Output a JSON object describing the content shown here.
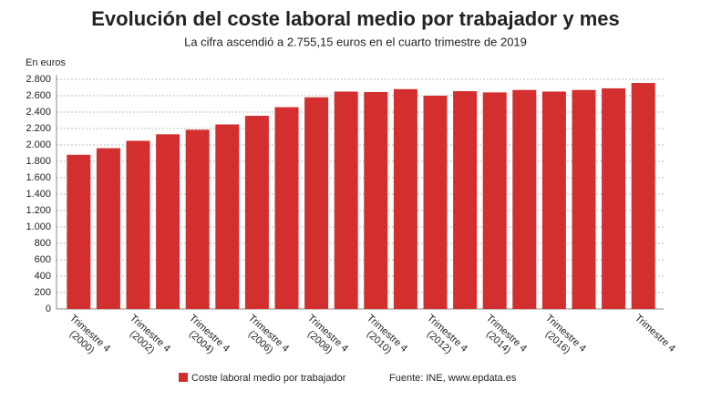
{
  "chart_data": {
    "type": "bar",
    "title": "Evolución del coste laboral medio por trabajador y mes",
    "subtitle": "La cifra ascendió a 2.755,15 euros en el cuarto trimestre de 2019",
    "y_axis_label": "En euros",
    "source": "Fuente: INE, www.epdata.es",
    "categories": [
      "Trimestre 4\n(2000)",
      null,
      "Trimestre 4\n(2002)",
      null,
      "Trimestre 4\n(2004)",
      null,
      "Trimestre 4\n(2006)",
      null,
      "Trimestre 4\n(2008)",
      null,
      "Trimestre 4\n(2010)",
      null,
      "Trimestre 4\n(2012)",
      null,
      "Trimestre 4\n(2014)",
      null,
      "Trimestre 4\n(2016)",
      null,
      null,
      "Trimestre 4"
    ],
    "series": [
      {
        "name": "Coste laboral medio por trabajador",
        "color": "#d32f2f",
        "values": [
          1880,
          1960,
          2050,
          2130,
          2185,
          2250,
          2355,
          2460,
          2580,
          2650,
          2645,
          2680,
          2600,
          2655,
          2640,
          2670,
          2650,
          2670,
          2690,
          2755.15
        ]
      }
    ],
    "ylim": [
      0,
      2800
    ],
    "yticks": [
      0,
      200,
      400,
      600,
      800,
      {
        "value": 1000,
        "label": "1.000"
      },
      {
        "value": 1200,
        "label": "1.200"
      },
      {
        "value": 1400,
        "label": "1.400"
      },
      {
        "value": 1600,
        "label": "1.600"
      },
      {
        "value": 1800,
        "label": "1.800"
      },
      {
        "value": 2000,
        "label": "2.000"
      },
      {
        "value": 2200,
        "label": "2.200"
      },
      {
        "value": 2400,
        "label": "2.400"
      },
      {
        "value": 2600,
        "label": "2.600"
      },
      {
        "value": 2800,
        "label": "2.800"
      }
    ],
    "grid": true
  }
}
